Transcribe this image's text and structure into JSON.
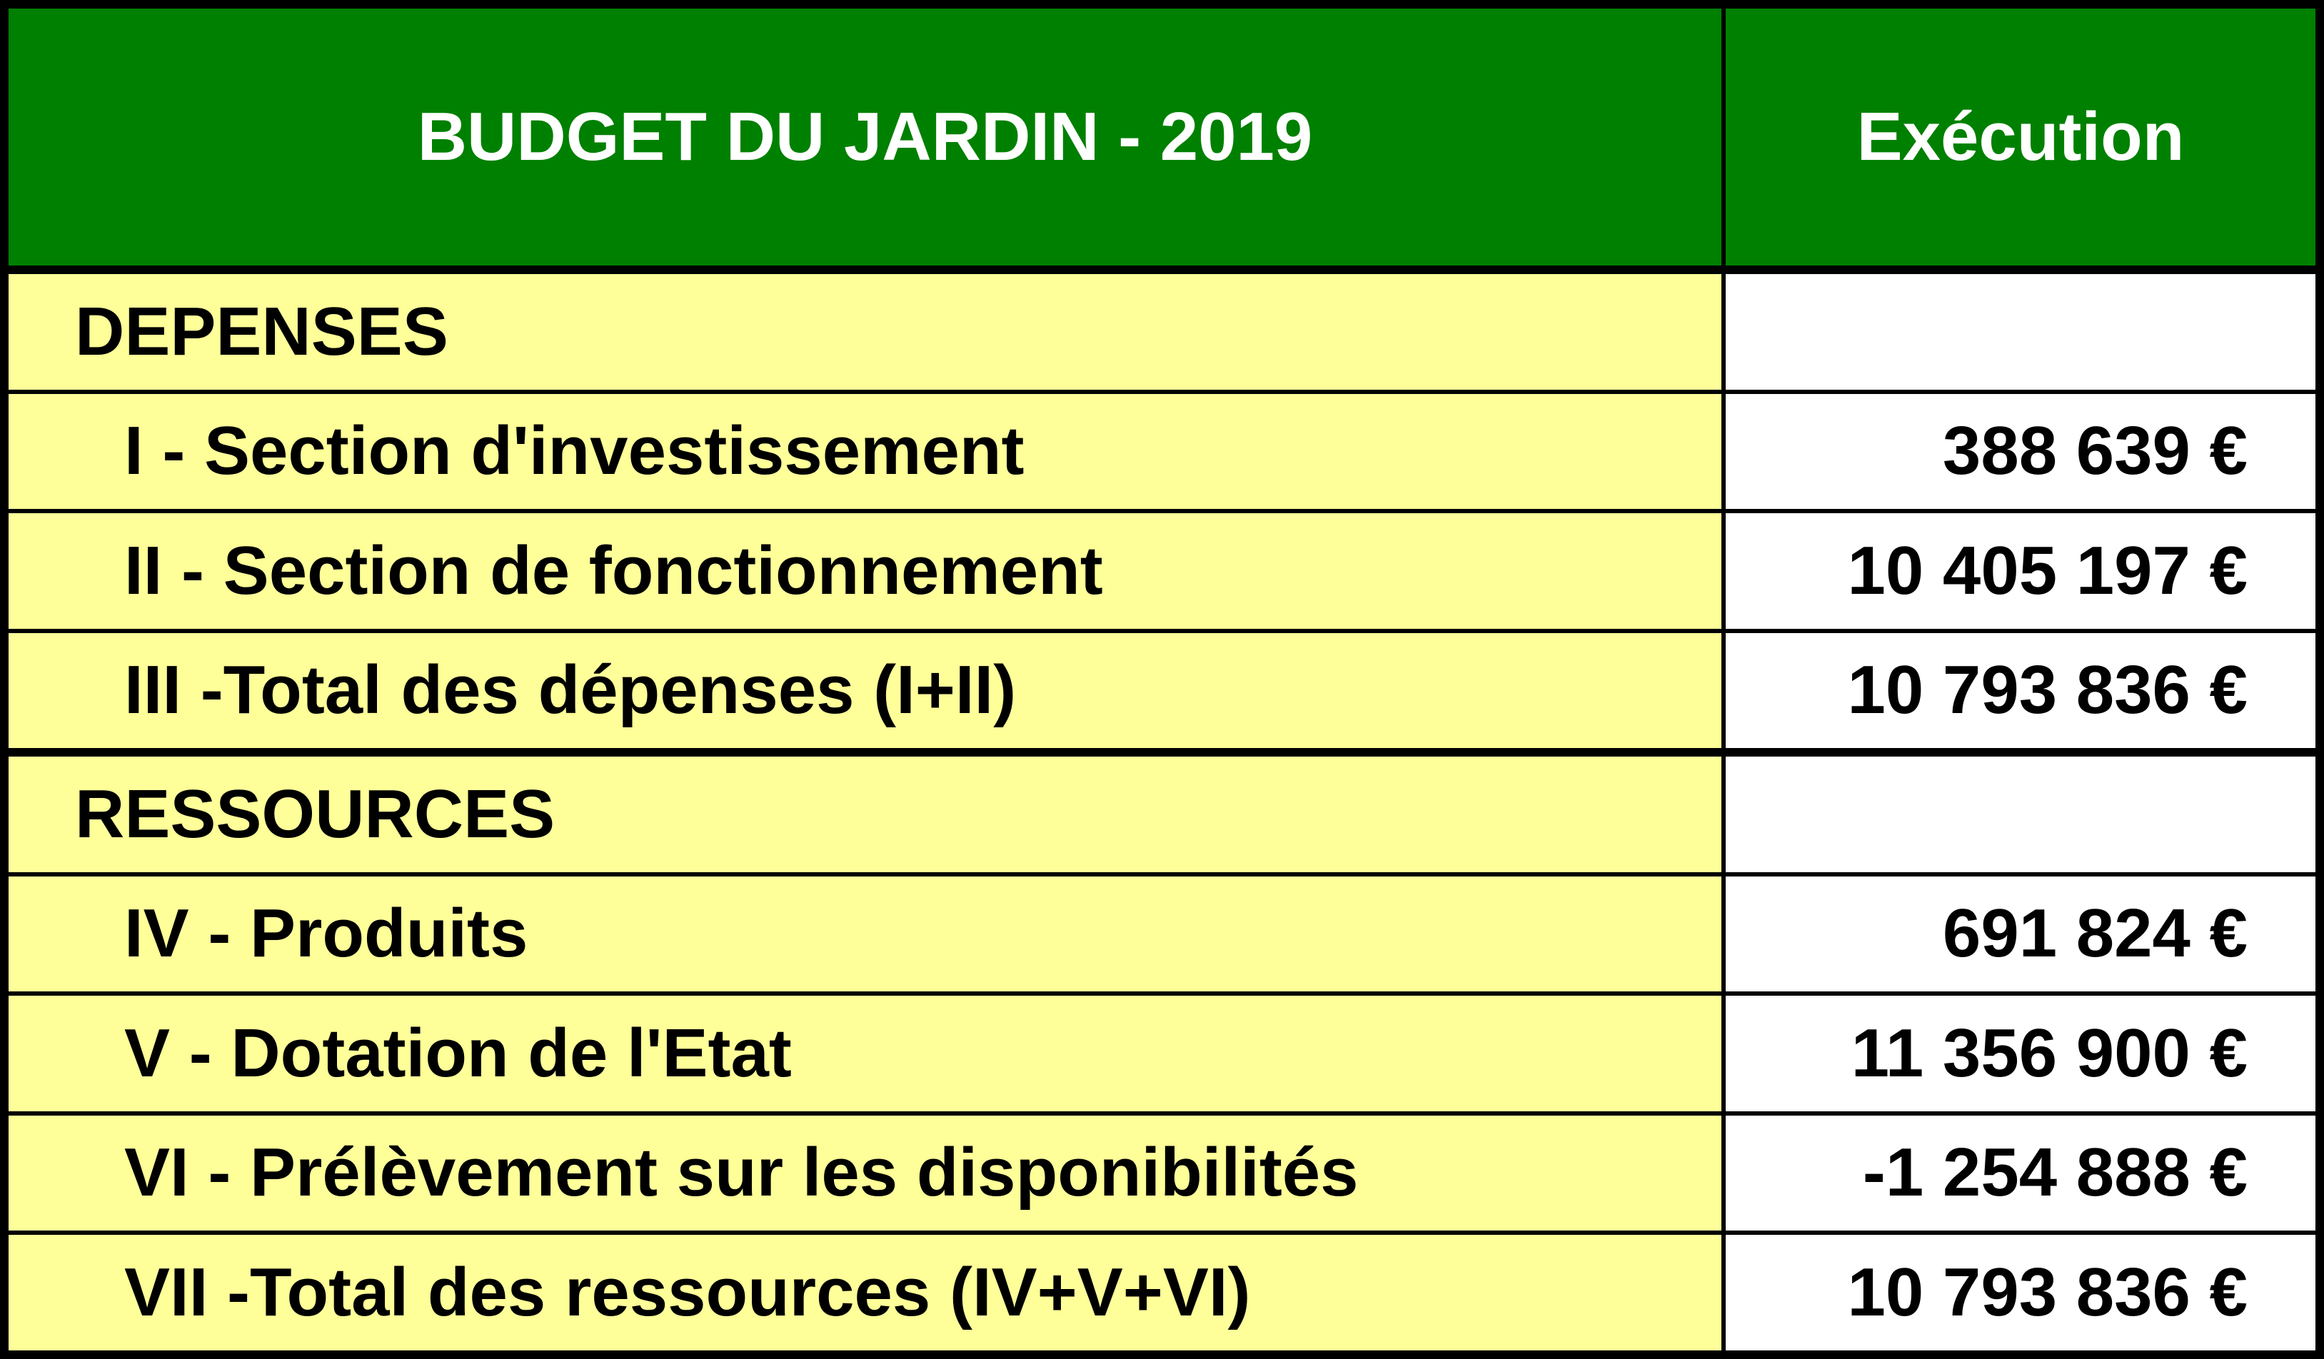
{
  "header": {
    "title": "BUDGET DU JARDIN - 2019",
    "column": "Exécution"
  },
  "sections": [
    {
      "label": "DEPENSES",
      "rows": [
        {
          "label": "I - Section d'investissement",
          "value": "388 639 €"
        },
        {
          "label": "II - Section de fonctionnement",
          "value": "10 405 197 €"
        },
        {
          "label": "III -Total des dépenses (I+II)",
          "value": "10 793 836 €"
        }
      ]
    },
    {
      "label": "RESSOURCES",
      "rows": [
        {
          "label": "IV - Produits",
          "value": "691 824 €"
        },
        {
          "label": "V - Dotation de l'Etat",
          "value": "11 356 900 €"
        },
        {
          "label": "VI - Prélèvement sur les disponibilités",
          "value": "-1 254 888 €"
        },
        {
          "label": "VII -Total des ressources (IV+V+VI)",
          "value": "10 793 836 €"
        }
      ]
    }
  ]
}
